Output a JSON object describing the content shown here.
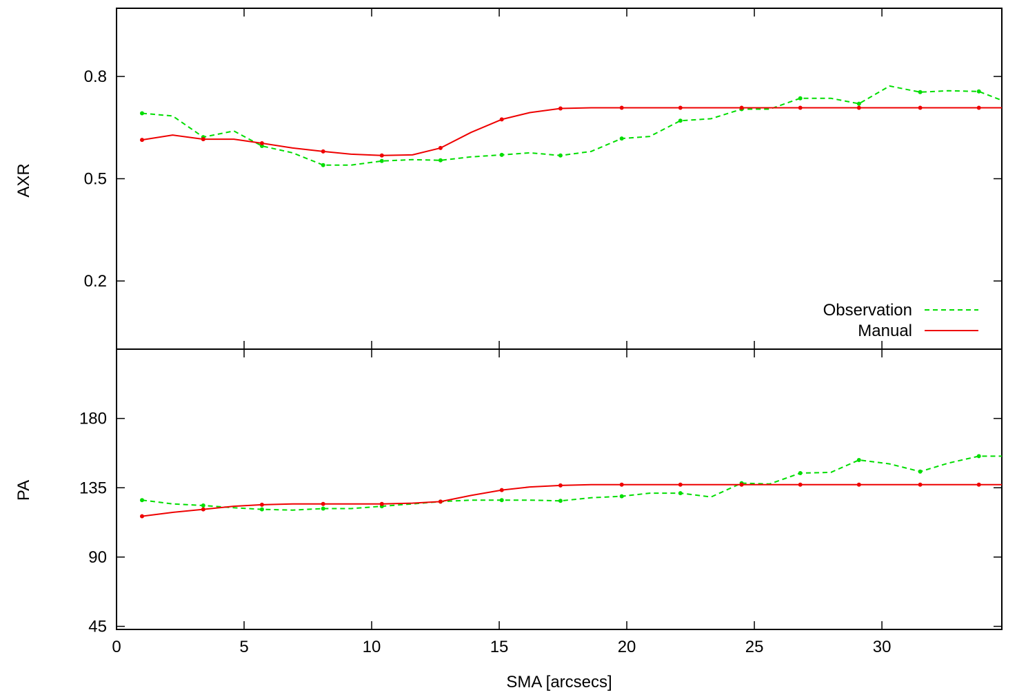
{
  "chart_data": [
    {
      "type": "line",
      "panel": "top",
      "xlabel": "",
      "ylabel": "AXR",
      "xlim": [
        0,
        34.7
      ],
      "ylim": [
        0.0,
        1.0
      ],
      "xticks": [
        0,
        5,
        10,
        15,
        20,
        25,
        30
      ],
      "yticks": [
        0.2,
        0.5,
        0.8
      ],
      "ytick_labels": [
        "0.2",
        "0.5",
        "0.8"
      ],
      "grid": false,
      "legend_position": "bottom-right",
      "series": [
        {
          "name": "Observation",
          "color": "#00dd00",
          "style": "dashed",
          "x": [
            1.0,
            2.2,
            3.4,
            4.6,
            5.7,
            6.9,
            8.1,
            9.2,
            10.4,
            11.6,
            12.7,
            13.9,
            15.1,
            16.2,
            17.4,
            18.6,
            19.8,
            20.9,
            22.1,
            23.3,
            24.5,
            25.6,
            26.8,
            28.0,
            29.1,
            30.3,
            31.5,
            32.6,
            33.8,
            34.7
          ],
          "y": [
            0.692,
            0.684,
            0.622,
            0.64,
            0.596,
            0.576,
            0.54,
            0.54,
            0.552,
            0.556,
            0.554,
            0.564,
            0.57,
            0.576,
            0.568,
            0.58,
            0.618,
            0.624,
            0.67,
            0.676,
            0.704,
            0.704,
            0.736,
            0.736,
            0.72,
            0.772,
            0.754,
            0.758,
            0.756,
            0.73
          ]
        },
        {
          "name": "Manual",
          "color": "#ee0000",
          "style": "solid",
          "x": [
            1.0,
            2.2,
            3.4,
            4.6,
            5.7,
            6.9,
            8.1,
            9.2,
            10.4,
            11.6,
            12.7,
            13.9,
            15.1,
            16.2,
            17.4,
            18.6,
            19.8,
            20.9,
            22.1,
            23.3,
            24.5,
            25.6,
            26.8,
            28.0,
            29.1,
            30.3,
            31.5,
            32.6,
            33.8,
            34.7
          ],
          "y": [
            0.614,
            0.628,
            0.616,
            0.616,
            0.604,
            0.59,
            0.58,
            0.572,
            0.568,
            0.57,
            0.59,
            0.636,
            0.674,
            0.694,
            0.706,
            0.708,
            0.708,
            0.708,
            0.708,
            0.708,
            0.708,
            0.708,
            0.708,
            0.708,
            0.708,
            0.708,
            0.708,
            0.708,
            0.708,
            0.708
          ]
        }
      ]
    },
    {
      "type": "line",
      "panel": "bottom",
      "xlabel": "SMA [arcsecs]",
      "ylabel": "PA",
      "xlim": [
        0,
        34.7
      ],
      "ylim": [
        43,
        225
      ],
      "xticks": [
        0,
        5,
        10,
        15,
        20,
        25,
        30
      ],
      "yticks": [
        45,
        90,
        135,
        180
      ],
      "ytick_labels": [
        "45",
        "90",
        "135",
        "180"
      ],
      "grid": false,
      "series": [
        {
          "name": "Observation",
          "color": "#00dd00",
          "style": "dashed",
          "x": [
            1.0,
            2.2,
            3.4,
            4.6,
            5.7,
            6.9,
            8.1,
            9.2,
            10.4,
            11.6,
            12.7,
            13.9,
            15.1,
            16.2,
            17.4,
            18.6,
            19.8,
            20.9,
            22.1,
            23.3,
            24.5,
            25.6,
            26.8,
            28.0,
            29.1,
            30.3,
            31.5,
            32.6,
            33.8,
            34.7
          ],
          "y": [
            127,
            124.5,
            123.5,
            122,
            121,
            120.5,
            121.5,
            121.5,
            123,
            124.5,
            126,
            127,
            127,
            127,
            126.5,
            128.5,
            129.5,
            131.5,
            131.5,
            129,
            138,
            137.5,
            144.5,
            145,
            153,
            150.5,
            145.5,
            151,
            155.5,
            155.5
          ]
        },
        {
          "name": "Manual",
          "color": "#ee0000",
          "style": "solid",
          "x": [
            1.0,
            2.2,
            3.4,
            4.6,
            5.7,
            6.9,
            8.1,
            9.2,
            10.4,
            11.6,
            12.7,
            13.9,
            15.1,
            16.2,
            17.4,
            18.6,
            19.8,
            20.9,
            22.1,
            23.3,
            24.5,
            25.6,
            26.8,
            28.0,
            29.1,
            30.3,
            31.5,
            32.6,
            33.8,
            34.7
          ],
          "y": [
            116.5,
            119,
            121,
            123,
            124,
            124.5,
            124.5,
            124.5,
            124.5,
            125,
            126,
            130,
            133.5,
            135.5,
            136.5,
            137,
            137,
            137,
            137,
            137,
            137,
            137,
            137,
            137,
            137,
            137,
            137,
            137,
            137,
            137
          ]
        }
      ]
    }
  ]
}
